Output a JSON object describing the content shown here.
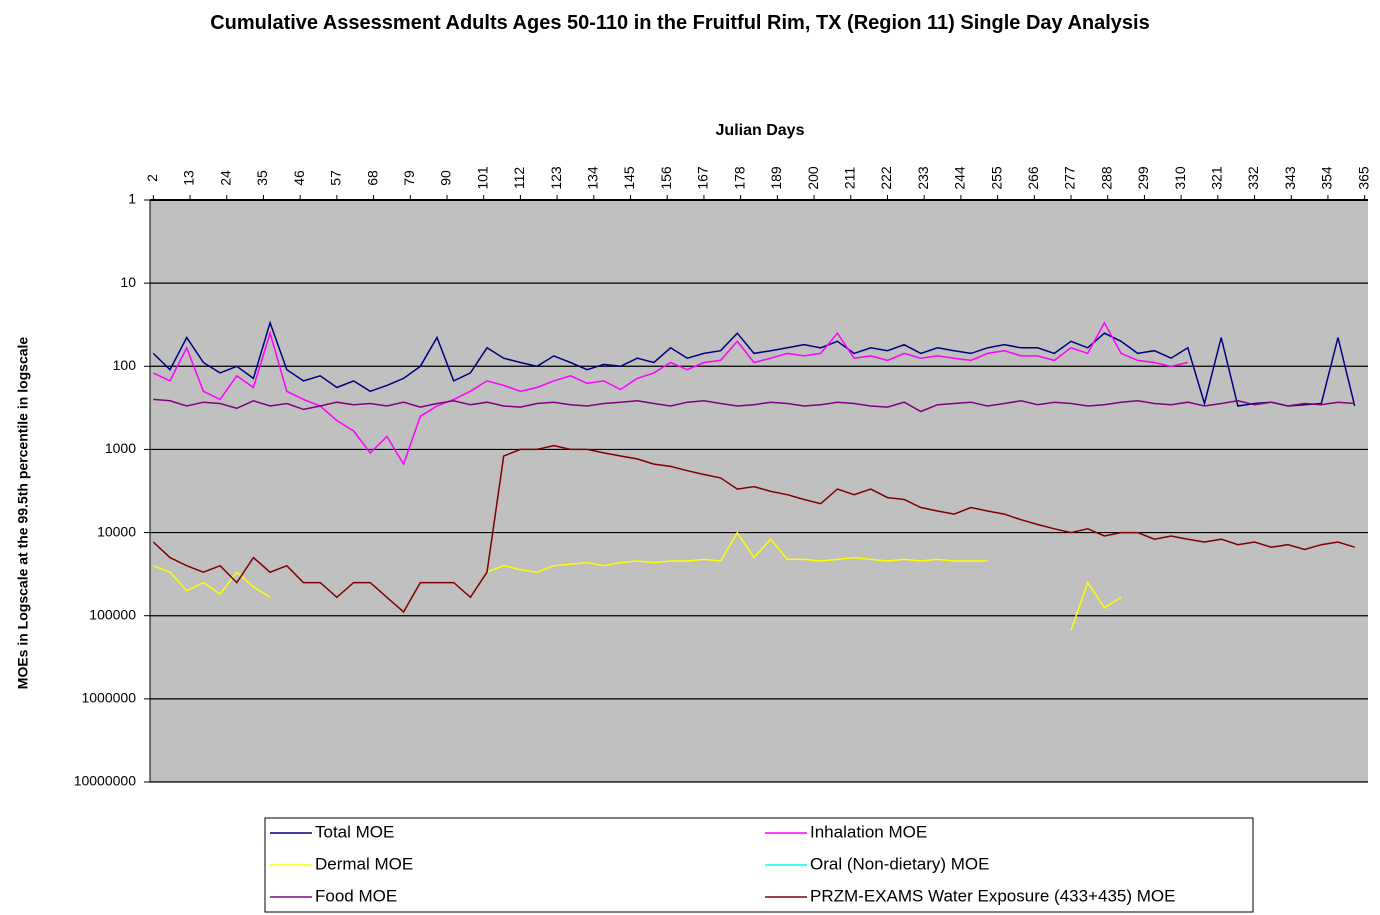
{
  "chart_data": {
    "type": "line",
    "title": "Cumulative Assessment Adults Ages 50-110 in the Fruitful Rim, TX (Region 11) Single Day Analysis",
    "x_label": "Julian Days",
    "y_label": "MOEs in Logscale at the 99.5th percentile in logscale",
    "log_y": true,
    "y_reversed": true,
    "grid": true,
    "legend": "bottom",
    "xlim": [
      1,
      366
    ],
    "xticks": [
      2,
      13,
      24,
      35,
      46,
      57,
      68,
      79,
      90,
      101,
      112,
      123,
      134,
      145,
      156,
      167,
      178,
      189,
      200,
      211,
      222,
      233,
      244,
      255,
      266,
      277,
      288,
      299,
      310,
      321,
      332,
      343,
      354,
      365
    ],
    "ylim": [
      1,
      10000000
    ],
    "yticks": [
      1,
      10,
      100,
      1000,
      10000,
      100000,
      1000000,
      10000000
    ],
    "x": [
      2,
      7,
      12,
      17,
      22,
      27,
      32,
      37,
      42,
      47,
      52,
      57,
      62,
      67,
      72,
      77,
      82,
      87,
      92,
      97,
      102,
      107,
      112,
      117,
      122,
      127,
      132,
      137,
      142,
      147,
      152,
      157,
      162,
      167,
      172,
      177,
      182,
      187,
      192,
      197,
      202,
      207,
      212,
      217,
      222,
      227,
      232,
      237,
      242,
      247,
      252,
      257,
      262,
      267,
      272,
      277,
      282,
      287,
      292,
      297,
      302,
      307,
      312,
      317,
      322,
      327,
      332,
      337,
      342,
      347,
      352,
      357,
      362
    ],
    "series": [
      {
        "name": "Total MOE",
        "color": "#000080",
        "values": [
          70,
          110,
          45,
          90,
          120,
          100,
          140,
          30,
          110,
          150,
          130,
          180,
          150,
          200,
          170,
          140,
          100,
          45,
          150,
          120,
          60,
          80,
          90,
          100,
          75,
          90,
          110,
          95,
          100,
          80,
          90,
          60,
          80,
          70,
          65,
          40,
          70,
          65,
          60,
          55,
          60,
          50,
          70,
          60,
          65,
          55,
          70,
          60,
          65,
          70,
          60,
          55,
          60,
          60,
          70,
          50,
          60,
          40,
          50,
          70,
          65,
          80,
          60,
          280,
          45,
          300,
          280,
          270,
          300,
          290,
          280,
          45,
          300
        ]
      },
      {
        "name": "Inhalation MOE",
        "color": "#ff00ff",
        "values": [
          120,
          150,
          60,
          200,
          250,
          130,
          180,
          40,
          200,
          250,
          300,
          450,
          600,
          1100,
          700,
          1500,
          400,
          300,
          250,
          200,
          150,
          170,
          200,
          180,
          150,
          130,
          160,
          150,
          190,
          140,
          120,
          90,
          110,
          90,
          85,
          50,
          90,
          80,
          70,
          75,
          70,
          40,
          80,
          75,
          85,
          70,
          80,
          75,
          80,
          85,
          70,
          65,
          75,
          75,
          85,
          60,
          70,
          30,
          70,
          85,
          90,
          100,
          90,
          null,
          null,
          null,
          null,
          null,
          null,
          null,
          null,
          null,
          null
        ]
      },
      {
        "name": "Dermal MOE",
        "color": "#ffff00",
        "values": [
          25000,
          30000,
          50000,
          40000,
          55000,
          30000,
          45000,
          60000,
          null,
          null,
          null,
          null,
          null,
          null,
          null,
          null,
          null,
          null,
          null,
          null,
          30000,
          25000,
          28000,
          30000,
          25000,
          24000,
          23000,
          25000,
          23000,
          22000,
          23000,
          22000,
          22000,
          21000,
          22000,
          10000,
          20000,
          12000,
          21000,
          21000,
          22000,
          21000,
          20000,
          21000,
          22000,
          21000,
          22000,
          21000,
          22000,
          22000,
          22000,
          null,
          null,
          null,
          null,
          150000,
          40000,
          80000,
          60000,
          null,
          null,
          null,
          null,
          null,
          null,
          null,
          null,
          null,
          null,
          null,
          null,
          null,
          null
        ]
      },
      {
        "name": "Oral (Non-dietary) MOE",
        "color": "#00ffff",
        "values": [
          null,
          null,
          null,
          null,
          null,
          null,
          null,
          null,
          null,
          null,
          null,
          null,
          null,
          null,
          null,
          null,
          null,
          null,
          null,
          null,
          null,
          null,
          null,
          null,
          null,
          null,
          null,
          null,
          null,
          null,
          null,
          null,
          null,
          null,
          null,
          null,
          null,
          null,
          null,
          null,
          null,
          null,
          null,
          null,
          null,
          null,
          null,
          null,
          null,
          null,
          null,
          null,
          null,
          null,
          null,
          null,
          null,
          null,
          null,
          null,
          null,
          null,
          null,
          null,
          null,
          null,
          null,
          null,
          null,
          null,
          null,
          null,
          null
        ]
      },
      {
        "name": "Food MOE",
        "color": "#800080",
        "values": [
          250,
          260,
          300,
          270,
          280,
          320,
          260,
          300,
          280,
          330,
          300,
          270,
          290,
          280,
          300,
          270,
          310,
          280,
          260,
          290,
          270,
          300,
          310,
          280,
          270,
          290,
          300,
          280,
          270,
          260,
          280,
          300,
          270,
          260,
          280,
          300,
          290,
          270,
          280,
          300,
          290,
          270,
          280,
          300,
          310,
          270,
          350,
          290,
          280,
          270,
          300,
          280,
          260,
          290,
          270,
          280,
          300,
          290,
          270,
          260,
          280,
          290,
          270,
          300,
          280,
          260,
          290,
          270,
          300,
          280,
          290,
          270,
          280
        ]
      },
      {
        "name": "PRZM-EXAMS Water Exposure (433+435) MOE",
        "color": "#800000",
        "values": [
          13000,
          20000,
          25000,
          30000,
          25000,
          40000,
          20000,
          30000,
          25000,
          40000,
          40000,
          60000,
          40000,
          40000,
          60000,
          90000,
          40000,
          40000,
          40000,
          60000,
          30000,
          1200,
          1000,
          1000,
          900,
          1000,
          1000,
          1100,
          1200,
          1300,
          1500,
          1600,
          1800,
          2000,
          2200,
          3000,
          2800,
          3200,
          3500,
          4000,
          4500,
          3000,
          3500,
          3000,
          3800,
          4000,
          5000,
          5500,
          6000,
          5000,
          5500,
          6000,
          7000,
          8000,
          9000,
          10000,
          9000,
          11000,
          10000,
          10000,
          12000,
          11000,
          12000,
          13000,
          12000,
          14000,
          13000,
          15000,
          14000,
          16000,
          14000,
          13000,
          15000
        ]
      }
    ]
  }
}
